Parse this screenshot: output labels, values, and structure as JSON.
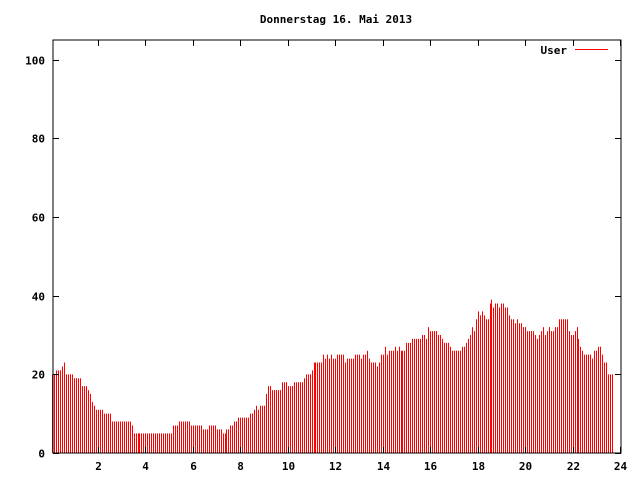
{
  "chart_data": {
    "type": "bar",
    "style": "impulses",
    "title": "Donnerstag 16. Mai 2013",
    "xlabel": "",
    "ylabel": "",
    "xlim": [
      0.1,
      24
    ],
    "ylim": [
      0,
      105
    ],
    "x_ticks": [
      "2",
      "4",
      "6",
      "8",
      "10",
      "12",
      "14",
      "16",
      "18",
      "20",
      "22",
      "24"
    ],
    "y_ticks": [
      "0",
      "20",
      "40",
      "60",
      "80",
      "100"
    ],
    "x_interval_minutes": 5,
    "legend": {
      "position": "top-right",
      "entries": [
        {
          "name": "User",
          "color": "#ff0000"
        }
      ]
    },
    "series": [
      {
        "name": "User",
        "color": "#ff0000",
        "values": [
          20,
          20,
          21,
          21,
          21,
          22,
          23,
          20,
          20,
          20,
          20,
          19,
          19,
          19,
          19,
          17,
          17,
          17,
          16,
          15,
          13,
          12,
          11,
          11,
          11,
          11,
          10,
          10,
          10,
          10,
          8,
          8,
          8,
          8,
          8,
          8,
          8,
          8,
          8,
          8,
          7,
          5,
          5,
          5,
          5,
          5,
          5,
          5,
          5,
          5,
          5,
          5,
          5,
          5,
          5,
          5,
          5,
          5,
          5,
          5,
          5,
          7,
          7,
          7,
          8,
          8,
          8,
          8,
          8,
          8,
          7,
          7,
          7,
          7,
          7,
          7,
          6,
          6,
          6,
          7,
          7,
          7,
          7,
          6,
          6,
          6,
          5,
          5,
          6,
          6,
          7,
          7,
          8,
          8,
          9,
          9,
          9,
          9,
          9,
          9,
          10,
          10,
          11,
          12,
          11,
          12,
          12,
          12,
          15,
          17,
          17,
          16,
          16,
          16,
          16,
          16,
          18,
          18,
          18,
          17,
          17,
          17,
          18,
          18,
          18,
          18,
          18,
          19,
          20,
          20,
          20,
          21,
          23,
          23,
          23,
          23,
          23,
          25,
          24,
          25,
          24,
          25,
          24,
          24,
          25,
          25,
          25,
          25,
          23,
          24,
          24,
          24,
          24,
          25,
          25,
          25,
          24,
          25,
          25,
          26,
          24,
          23,
          23,
          23,
          22,
          23,
          25,
          25,
          27,
          25,
          26,
          26,
          26,
          27,
          26,
          27,
          26,
          26,
          26,
          28,
          28,
          28,
          29,
          29,
          29,
          29,
          29,
          30,
          30,
          29,
          32,
          31,
          31,
          31,
          31,
          30,
          30,
          29,
          28,
          28,
          28,
          27,
          26,
          26,
          26,
          26,
          26,
          27,
          27,
          28,
          29,
          30,
          32,
          31,
          34,
          36,
          35,
          36,
          35,
          34,
          34,
          38,
          39,
          37,
          38,
          38,
          37,
          38,
          38,
          37,
          37,
          35,
          34,
          34,
          33,
          34,
          33,
          33,
          32,
          32,
          31,
          31,
          31,
          31,
          30,
          29,
          30,
          31,
          32,
          30,
          31,
          32,
          31,
          31,
          32,
          32,
          34,
          34,
          34,
          34,
          34,
          31,
          30,
          30,
          31,
          32,
          29,
          27,
          26,
          25,
          25,
          25,
          25,
          24,
          26,
          26,
          27,
          27,
          25,
          23,
          23,
          20,
          20,
          20
        ]
      }
    ]
  }
}
